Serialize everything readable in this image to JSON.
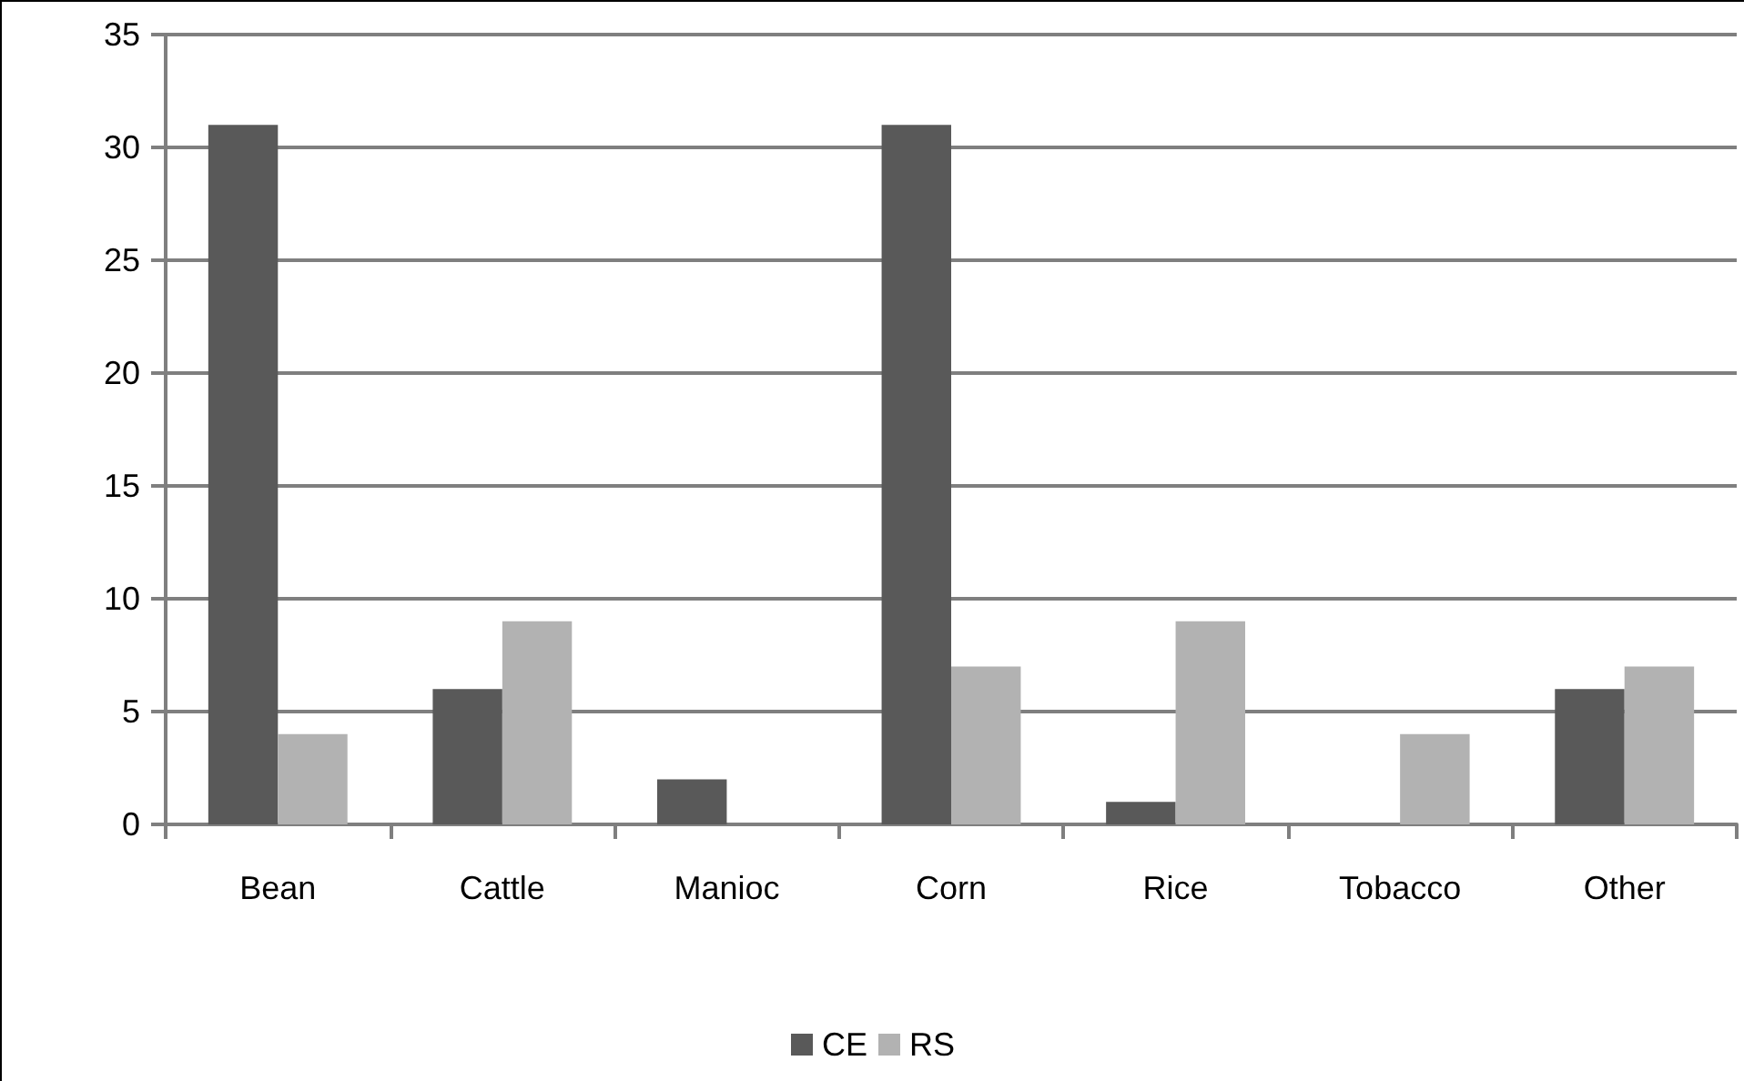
{
  "chart_data": {
    "type": "bar",
    "categories": [
      "Bean",
      "Cattle",
      "Manioc",
      "Corn",
      "Rice",
      "Tobacco",
      "Other"
    ],
    "series": [
      {
        "name": "CE",
        "color": "#595959",
        "values": [
          31,
          6,
          2,
          31,
          1,
          0,
          6
        ]
      },
      {
        "name": "RS",
        "color": "#b2b2b2",
        "values": [
          4,
          9,
          0,
          7,
          9,
          4,
          7
        ]
      }
    ],
    "ylim": [
      0,
      35
    ],
    "yticks": [
      0,
      5,
      10,
      15,
      20,
      25,
      30,
      35
    ],
    "grid": "y",
    "legend": "bottom"
  }
}
